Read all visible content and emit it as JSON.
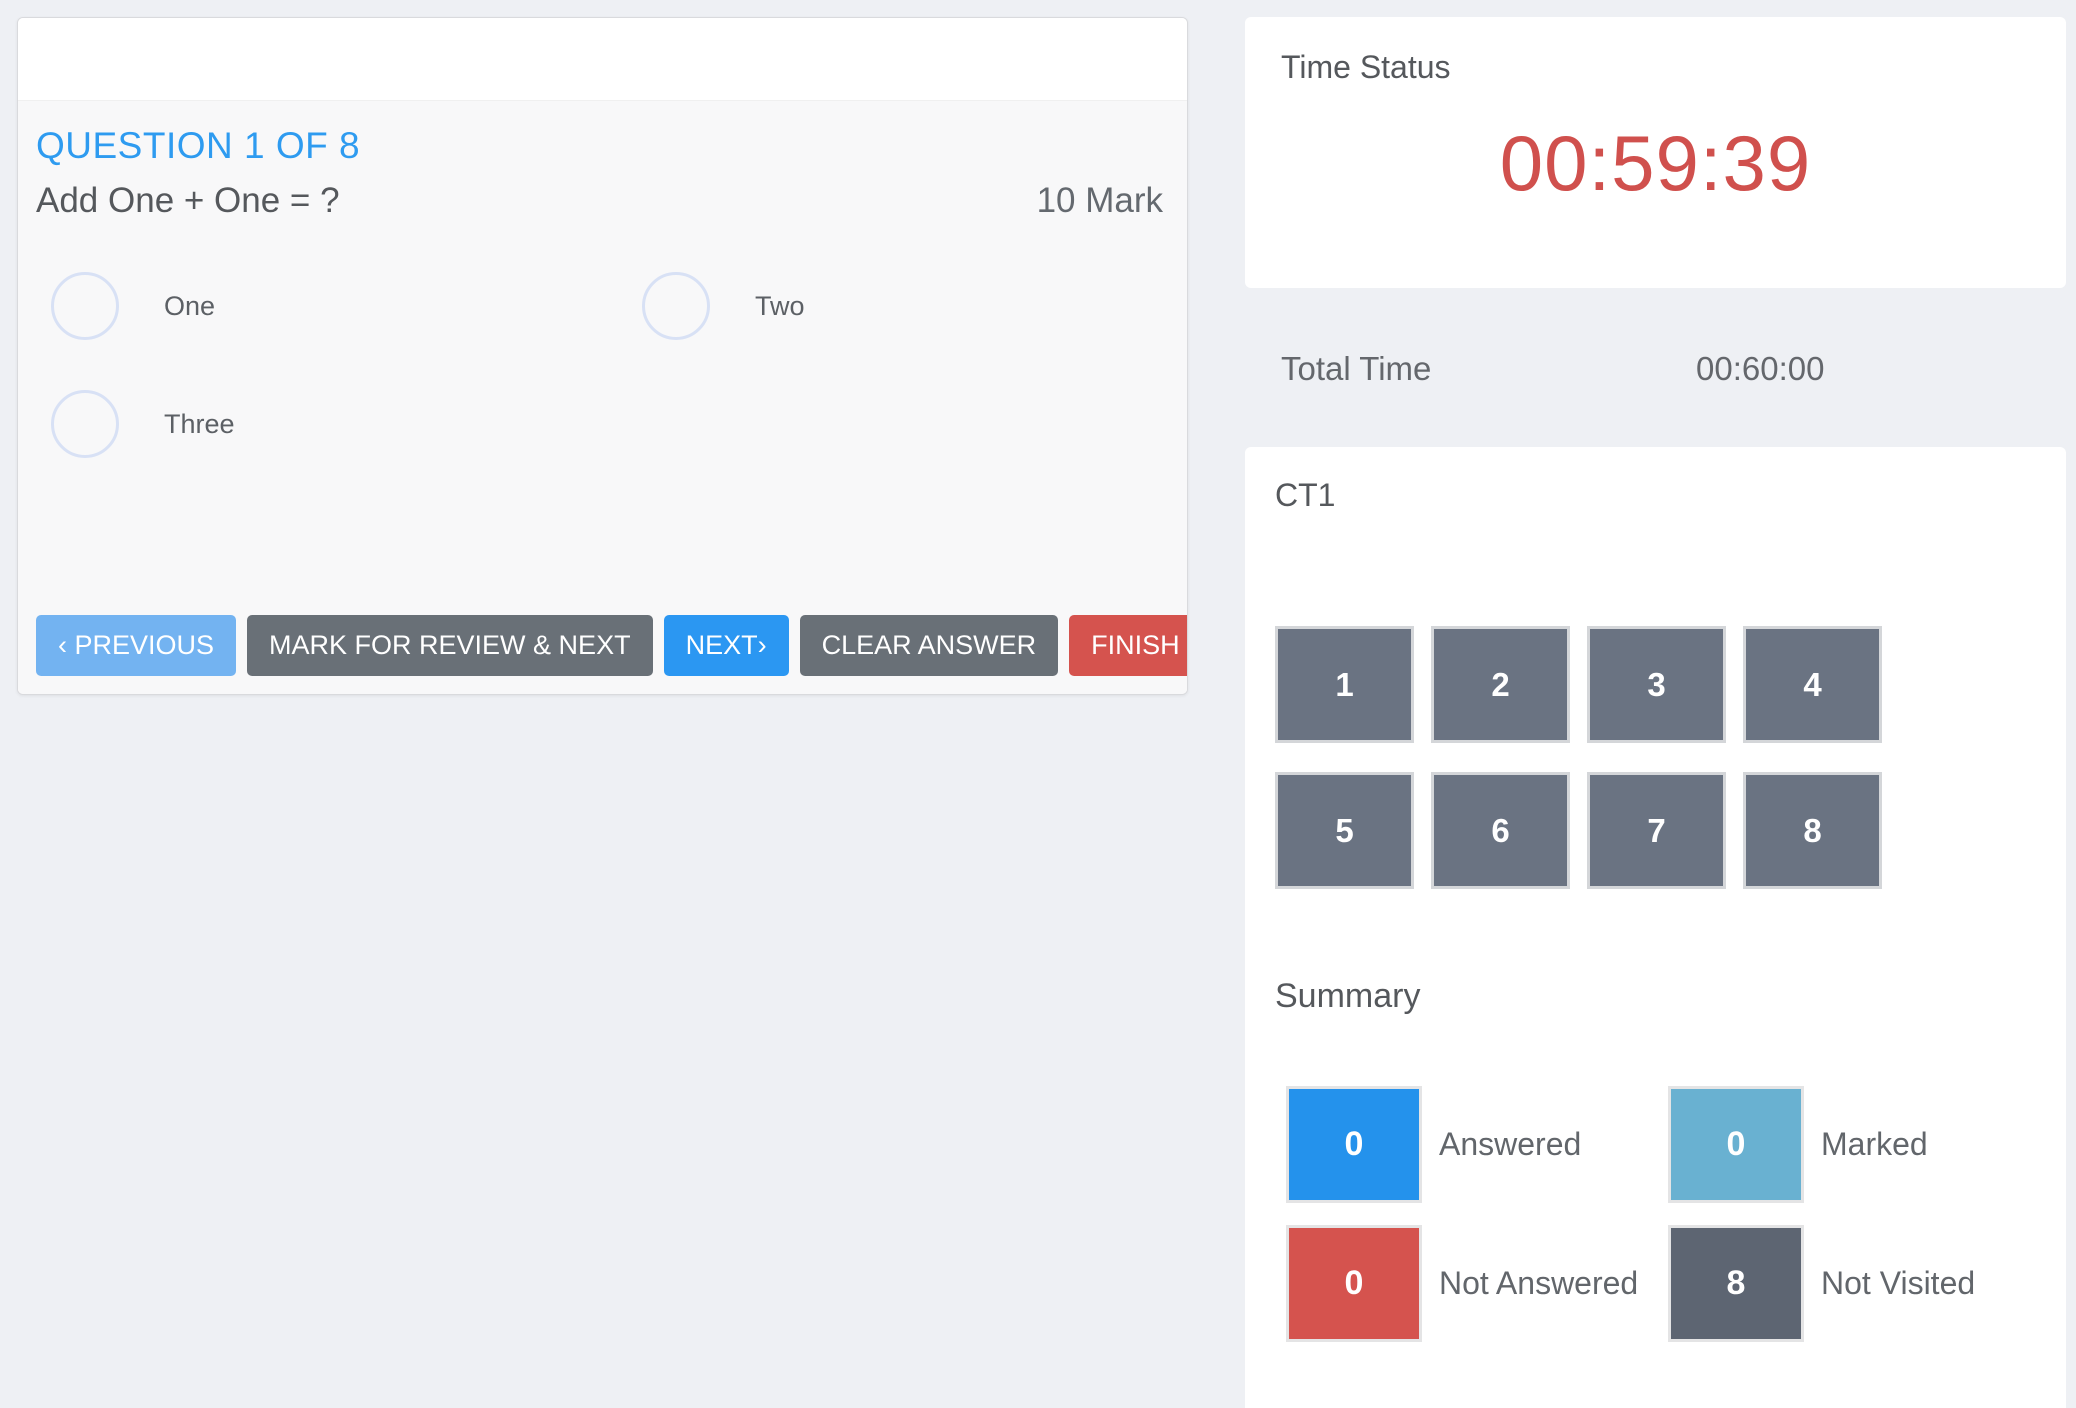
{
  "question_panel": {
    "question_number_label": "QUESTION 1 OF 8",
    "question_text": "Add One + One = ?",
    "mark_label": "10 Mark",
    "options": [
      {
        "label": "One"
      },
      {
        "label": "Two"
      },
      {
        "label": "Three"
      }
    ],
    "buttons": {
      "previous": "‹ PREVIOUS",
      "mark_for_review": "MARK FOR REVIEW & NEXT",
      "next": "NEXT›",
      "clear": "CLEAR ANSWER",
      "finish": "FINISH"
    }
  },
  "time_panel": {
    "title": "Time Status",
    "remaining_time": "00:59:39",
    "total_time_label": "Total Time",
    "total_time_value": "00:60:00"
  },
  "section_panel": {
    "section_name": "CT1",
    "question_numbers": [
      "1",
      "2",
      "3",
      "4",
      "5",
      "6",
      "7",
      "8"
    ],
    "summary_title": "Summary",
    "summary": [
      {
        "count": "0",
        "label": "Answered",
        "color": "#2492ec"
      },
      {
        "count": "0",
        "label": "Marked",
        "color": "#69b1d1"
      },
      {
        "count": "0",
        "label": "Not Answered",
        "color": "#d5534e"
      },
      {
        "count": "8",
        "label": "Not Visited",
        "color": "#5d6572"
      }
    ]
  },
  "colors": {
    "page_background": "#eef0f4",
    "question_title_blue": "#2e9bf0",
    "timer_red": "#d0504d",
    "previous_button_blue": "#73b3f1",
    "next_button_blue": "#2b97f2",
    "gray_button": "#697077",
    "finish_button_red": "#d5534e",
    "grid_button_slate": "#6a7382"
  }
}
